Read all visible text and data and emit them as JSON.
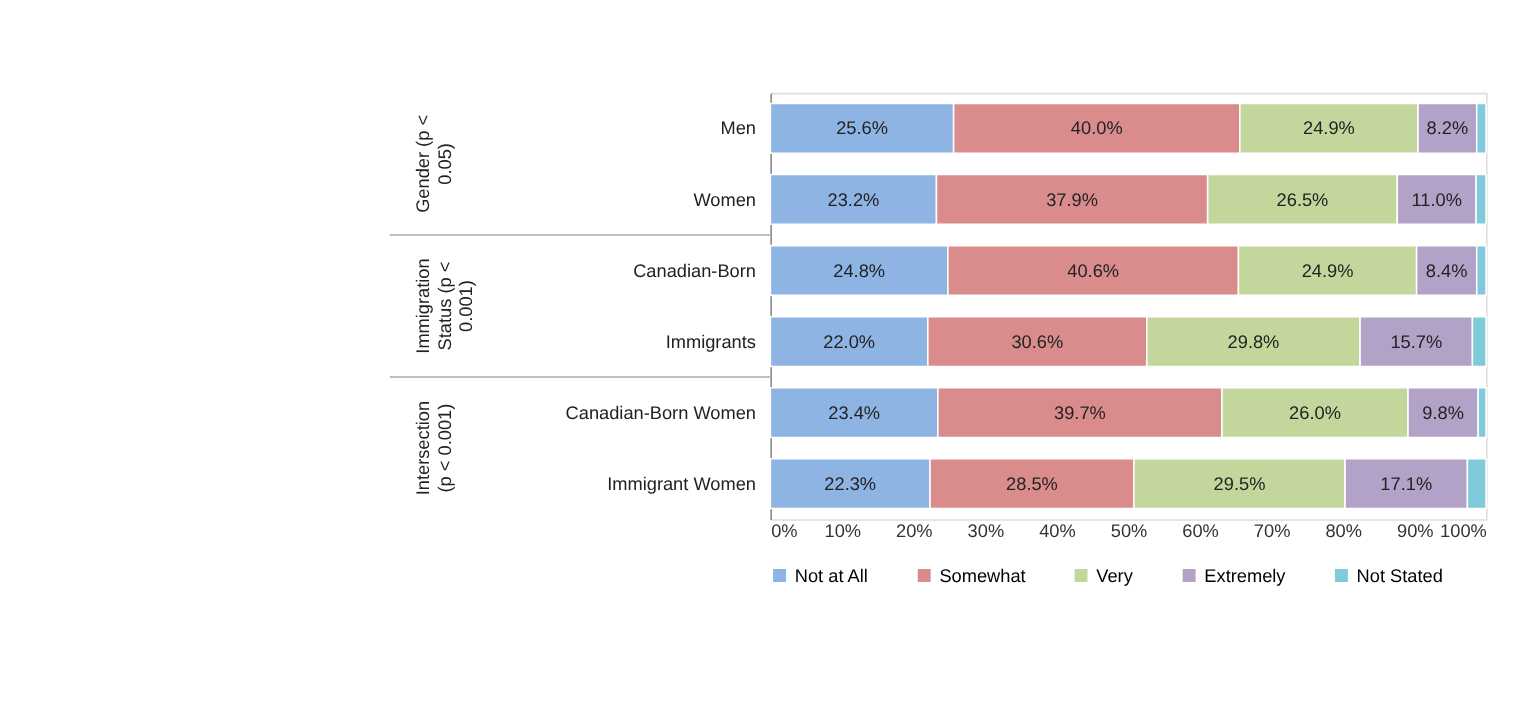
{
  "chart_data": {
    "type": "bar",
    "orientation": "horizontal",
    "stacked": true,
    "categories": [
      "Men",
      "Women",
      "Canadian-Born",
      "Immigrants",
      "Canadian-Born Women",
      "Immigrant Women"
    ],
    "series": [
      {
        "name": "Not at All",
        "color": "#8eb4e3",
        "values": [
          25.6,
          23.2,
          24.8,
          22.0,
          23.4,
          22.3
        ],
        "value_labels": [
          "25.6%",
          "23.2%",
          "24.8%",
          "22.0%",
          "23.4%",
          "22.3%"
        ]
      },
      {
        "name": "Somewhat",
        "color": "#da8c8c",
        "values": [
          40.0,
          37.9,
          40.6,
          30.6,
          39.7,
          28.5
        ],
        "value_labels": [
          "40.0%",
          "37.9%",
          "40.6%",
          "30.6%",
          "39.7%",
          "28.5%"
        ]
      },
      {
        "name": "Very",
        "color": "#c3d69b",
        "values": [
          24.9,
          26.5,
          24.9,
          29.8,
          26.0,
          29.5
        ],
        "value_labels": [
          "24.9%",
          "26.5%",
          "24.9%",
          "29.8%",
          "26.0%",
          "29.5%"
        ]
      },
      {
        "name": "Extremely",
        "color": "#b3a2c7",
        "values": [
          8.2,
          11.0,
          8.4,
          15.7,
          9.8,
          17.1
        ],
        "value_labels": [
          "8.2%",
          "11.0%",
          "8.4%",
          "15.7%",
          "9.8%",
          "17.1%"
        ]
      },
      {
        "name": "Not Stated",
        "color": "#7fcadb",
        "values": [
          1.3,
          1.4,
          1.3,
          1.9,
          1.1,
          2.6
        ],
        "value_labels": [
          null,
          null,
          null,
          null,
          null,
          null
        ]
      }
    ],
    "xlim": [
      0,
      100
    ],
    "xticks": [
      {
        "value": 0,
        "label": "0%"
      },
      {
        "value": 10,
        "label": "10%"
      },
      {
        "value": 20,
        "label": "20%"
      },
      {
        "value": 30,
        "label": "30%"
      },
      {
        "value": 40,
        "label": "40%"
      },
      {
        "value": 50,
        "label": "50%"
      },
      {
        "value": 60,
        "label": "60%"
      },
      {
        "value": 70,
        "label": "70%"
      },
      {
        "value": 80,
        "label": "80%"
      },
      {
        "value": 90,
        "label": "90%"
      },
      {
        "value": 100,
        "label": "100%"
      }
    ],
    "annotations": [
      "Gender (p < 0.05)",
      "Immigration Status (p < 0.001)",
      "Intersection (p < 0.001)"
    ],
    "legend": "bottom",
    "grid": false
  }
}
